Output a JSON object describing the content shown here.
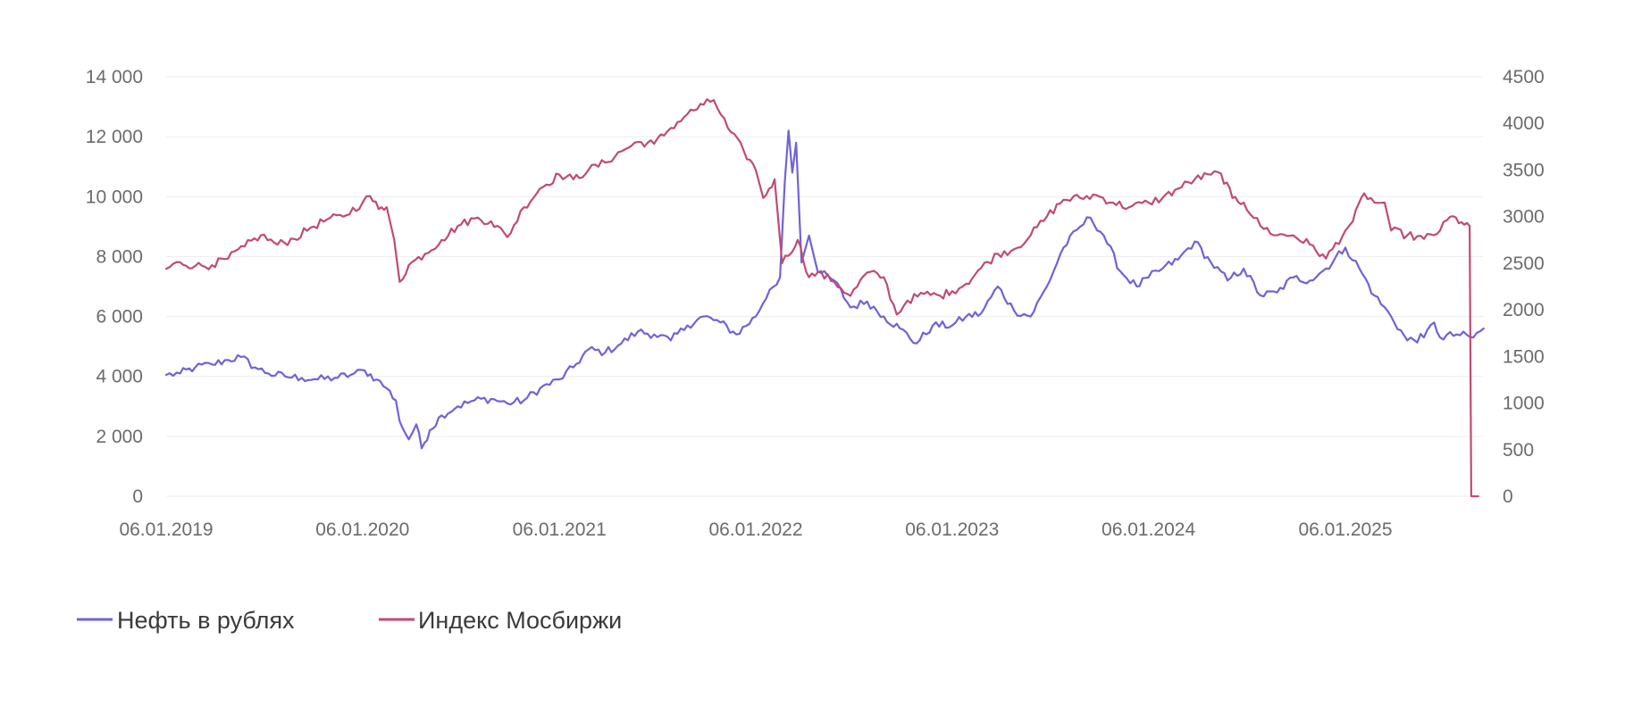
{
  "chart_data": {
    "type": "line",
    "title": "",
    "xlabel": "",
    "ylabel": "",
    "x_range": [
      "2019-01-06",
      "2025-09-28"
    ],
    "x_ticks": [
      "06.01.2019",
      "06.01.2020",
      "06.01.2021",
      "06.01.2022",
      "06.01.2023",
      "06.01.2024",
      "06.01.2025"
    ],
    "y_left": {
      "ylim": [
        0,
        14000
      ],
      "ticks": [
        0,
        2000,
        4000,
        6000,
        8000,
        10000,
        12000,
        14000
      ],
      "tick_labels": [
        "0",
        "2 000",
        "4 000",
        "6 000",
        "8 000",
        "10 000",
        "12 000",
        "14 000"
      ]
    },
    "y_right": {
      "ylim": [
        0,
        4500
      ],
      "ticks": [
        0,
        500,
        1000,
        1500,
        2000,
        2500,
        3000,
        3500,
        4000,
        4500
      ],
      "tick_labels": [
        "0",
        "500",
        "1000",
        "1500",
        "2000",
        "2500",
        "3000",
        "3500",
        "4000",
        "4500"
      ]
    },
    "grid": true,
    "legend_position": "bottom-left",
    "series": [
      {
        "name": "Нефть в рублях",
        "axis": "left",
        "color": "#6f63d6",
        "points": [
          [
            "2019-01-06",
            4050
          ],
          [
            "2019-02-01",
            4100
          ],
          [
            "2019-03-01",
            4300
          ],
          [
            "2019-04-01",
            4400
          ],
          [
            "2019-05-01",
            4550
          ],
          [
            "2019-05-25",
            4650
          ],
          [
            "2019-06-20",
            4300
          ],
          [
            "2019-07-15",
            4100
          ],
          [
            "2019-08-15",
            4000
          ],
          [
            "2019-09-15",
            3950
          ],
          [
            "2019-10-15",
            3900
          ],
          [
            "2019-11-15",
            3950
          ],
          [
            "2019-12-15",
            4050
          ],
          [
            "2020-01-10",
            4200
          ],
          [
            "2020-02-01",
            3900
          ],
          [
            "2020-02-20",
            3600
          ],
          [
            "2020-03-08",
            3200
          ],
          [
            "2020-03-15",
            2500
          ],
          [
            "2020-04-01",
            1900
          ],
          [
            "2020-04-15",
            2400
          ],
          [
            "2020-04-25",
            1600
          ],
          [
            "2020-05-10",
            2200
          ],
          [
            "2020-06-01",
            2700
          ],
          [
            "2020-07-01",
            3000
          ],
          [
            "2020-08-01",
            3200
          ],
          [
            "2020-09-01",
            3250
          ],
          [
            "2020-10-01",
            3100
          ],
          [
            "2020-11-01",
            3200
          ],
          [
            "2020-12-01",
            3600
          ],
          [
            "2021-01-06",
            3900
          ],
          [
            "2021-02-01",
            4300
          ],
          [
            "2021-03-01",
            4900
          ],
          [
            "2021-04-01",
            4800
          ],
          [
            "2021-05-01",
            5100
          ],
          [
            "2021-06-01",
            5500
          ],
          [
            "2021-07-01",
            5400
          ],
          [
            "2021-08-01",
            5200
          ],
          [
            "2021-09-01",
            5700
          ],
          [
            "2021-10-01",
            6000
          ],
          [
            "2021-11-01",
            5800
          ],
          [
            "2021-12-01",
            5400
          ],
          [
            "2022-01-06",
            6000
          ],
          [
            "2022-02-01",
            6900
          ],
          [
            "2022-02-20",
            7300
          ],
          [
            "2022-03-01",
            10500
          ],
          [
            "2022-03-08",
            12200
          ],
          [
            "2022-03-15",
            10800
          ],
          [
            "2022-03-22",
            11800
          ],
          [
            "2022-04-01",
            7800
          ],
          [
            "2022-04-15",
            8700
          ],
          [
            "2022-05-01",
            7500
          ],
          [
            "2022-06-01",
            7200
          ],
          [
            "2022-07-01",
            6300
          ],
          [
            "2022-08-01",
            6500
          ],
          [
            "2022-09-01",
            6000
          ],
          [
            "2022-10-01",
            5600
          ],
          [
            "2022-11-01",
            5100
          ],
          [
            "2022-12-01",
            5700
          ],
          [
            "2023-01-06",
            5700
          ],
          [
            "2023-02-01",
            6000
          ],
          [
            "2023-03-01",
            6100
          ],
          [
            "2023-04-01",
            7000
          ],
          [
            "2023-05-01",
            6200
          ],
          [
            "2023-06-01",
            6000
          ],
          [
            "2023-07-01",
            7000
          ],
          [
            "2023-08-01",
            8300
          ],
          [
            "2023-09-01",
            9000
          ],
          [
            "2023-09-20",
            9300
          ],
          [
            "2023-10-15",
            8700
          ],
          [
            "2023-11-15",
            7500
          ],
          [
            "2023-12-15",
            7000
          ],
          [
            "2024-01-06",
            7300
          ],
          [
            "2024-02-01",
            7600
          ],
          [
            "2024-03-01",
            7900
          ],
          [
            "2024-04-01",
            8500
          ],
          [
            "2024-05-01",
            7800
          ],
          [
            "2024-06-01",
            7200
          ],
          [
            "2024-07-01",
            7600
          ],
          [
            "2024-08-01",
            6700
          ],
          [
            "2024-09-01",
            6800
          ],
          [
            "2024-10-01",
            7300
          ],
          [
            "2024-11-01",
            7200
          ],
          [
            "2024-12-01",
            7600
          ],
          [
            "2025-01-06",
            8300
          ],
          [
            "2025-02-01",
            7600
          ],
          [
            "2025-03-01",
            6700
          ],
          [
            "2025-04-01",
            6000
          ],
          [
            "2025-05-01",
            5200
          ],
          [
            "2025-06-01",
            5300
          ],
          [
            "2025-06-20",
            5800
          ],
          [
            "2025-07-01",
            5300
          ],
          [
            "2025-08-01",
            5400
          ],
          [
            "2025-09-01",
            5300
          ],
          [
            "2025-09-20",
            5600
          ]
        ]
      },
      {
        "name": "Индекс Мосбиржи",
        "axis": "right",
        "color": "#c04a76",
        "points": [
          [
            "2019-01-06",
            2440
          ],
          [
            "2019-02-01",
            2510
          ],
          [
            "2019-03-01",
            2470
          ],
          [
            "2019-04-01",
            2480
          ],
          [
            "2019-05-01",
            2550
          ],
          [
            "2019-06-01",
            2680
          ],
          [
            "2019-07-01",
            2800
          ],
          [
            "2019-08-01",
            2700
          ],
          [
            "2019-09-01",
            2760
          ],
          [
            "2019-10-01",
            2880
          ],
          [
            "2019-11-01",
            2970
          ],
          [
            "2019-12-01",
            3000
          ],
          [
            "2020-01-06",
            3150
          ],
          [
            "2020-01-20",
            3220
          ],
          [
            "2020-02-05",
            3080
          ],
          [
            "2020-02-20",
            3100
          ],
          [
            "2020-03-05",
            2750
          ],
          [
            "2020-03-15",
            2300
          ],
          [
            "2020-04-01",
            2480
          ],
          [
            "2020-05-01",
            2600
          ],
          [
            "2020-06-01",
            2750
          ],
          [
            "2020-07-01",
            2900
          ],
          [
            "2020-08-01",
            2980
          ],
          [
            "2020-09-01",
            2950
          ],
          [
            "2020-10-01",
            2780
          ],
          [
            "2020-11-01",
            3100
          ],
          [
            "2020-12-01",
            3300
          ],
          [
            "2021-01-06",
            3450
          ],
          [
            "2021-02-01",
            3400
          ],
          [
            "2021-03-01",
            3500
          ],
          [
            "2021-04-01",
            3580
          ],
          [
            "2021-05-01",
            3700
          ],
          [
            "2021-06-01",
            3800
          ],
          [
            "2021-07-01",
            3780
          ],
          [
            "2021-08-01",
            3950
          ],
          [
            "2021-09-01",
            4100
          ],
          [
            "2021-10-01",
            4200
          ],
          [
            "2021-10-20",
            4250
          ],
          [
            "2021-11-15",
            3950
          ],
          [
            "2021-12-15",
            3700
          ],
          [
            "2022-01-06",
            3500
          ],
          [
            "2022-01-20",
            3200
          ],
          [
            "2022-02-10",
            3400
          ],
          [
            "2022-02-24",
            2500
          ],
          [
            "2022-03-25",
            2750
          ],
          [
            "2022-04-15",
            2350
          ],
          [
            "2022-05-01",
            2400
          ],
          [
            "2022-06-01",
            2300
          ],
          [
            "2022-07-01",
            2150
          ],
          [
            "2022-08-01",
            2400
          ],
          [
            "2022-09-01",
            2350
          ],
          [
            "2022-09-25",
            1950
          ],
          [
            "2022-10-15",
            2100
          ],
          [
            "2022-11-15",
            2170
          ],
          [
            "2022-12-15",
            2150
          ],
          [
            "2023-01-06",
            2200
          ],
          [
            "2023-02-01",
            2280
          ],
          [
            "2023-03-01",
            2450
          ],
          [
            "2023-04-01",
            2600
          ],
          [
            "2023-05-01",
            2650
          ],
          [
            "2023-06-01",
            2800
          ],
          [
            "2023-07-01",
            3000
          ],
          [
            "2023-08-01",
            3180
          ],
          [
            "2023-09-01",
            3200
          ],
          [
            "2023-10-01",
            3230
          ],
          [
            "2023-11-01",
            3150
          ],
          [
            "2023-12-01",
            3100
          ],
          [
            "2024-01-06",
            3150
          ],
          [
            "2024-02-01",
            3200
          ],
          [
            "2024-03-01",
            3300
          ],
          [
            "2024-04-01",
            3400
          ],
          [
            "2024-05-01",
            3450
          ],
          [
            "2024-05-20",
            3460
          ],
          [
            "2024-06-10",
            3200
          ],
          [
            "2024-07-01",
            3150
          ],
          [
            "2024-08-01",
            2900
          ],
          [
            "2024-09-01",
            2800
          ],
          [
            "2024-10-01",
            2800
          ],
          [
            "2024-11-01",
            2700
          ],
          [
            "2024-12-01",
            2550
          ],
          [
            "2025-01-06",
            2850
          ],
          [
            "2025-01-20",
            2950
          ],
          [
            "2025-02-10",
            3250
          ],
          [
            "2025-03-01",
            3150
          ],
          [
            "2025-03-20",
            3150
          ],
          [
            "2025-04-01",
            2850
          ],
          [
            "2025-05-01",
            2800
          ],
          [
            "2025-06-01",
            2760
          ],
          [
            "2025-07-01",
            2850
          ],
          [
            "2025-07-20",
            3000
          ],
          [
            "2025-08-10",
            2940
          ],
          [
            "2025-08-25",
            2900
          ],
          [
            "2025-08-28",
            0
          ],
          [
            "2025-09-10",
            0
          ]
        ]
      }
    ]
  }
}
